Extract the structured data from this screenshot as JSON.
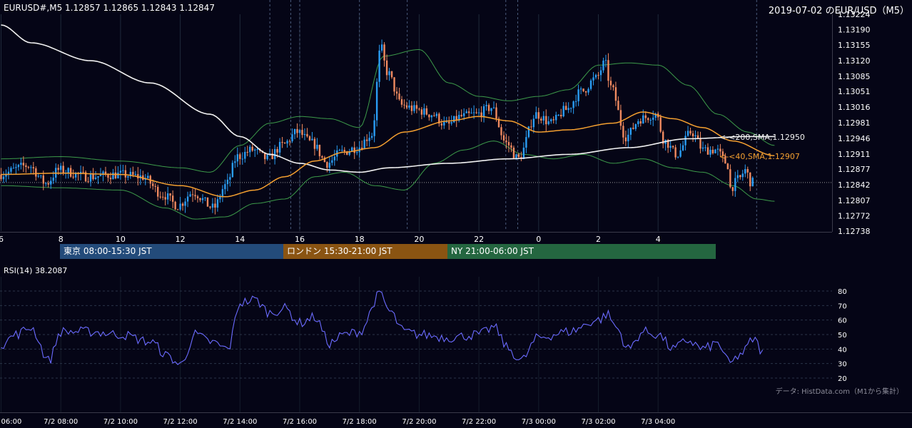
{
  "header": {
    "symbol_line": "EURUSD#,M5 1.12857 1.12865 1.12843 1.12847",
    "title": "2019-07-02 のEUR/USD（M5）"
  },
  "colors": {
    "background": "#050516",
    "bull": "#2a9df4",
    "bear": "#f08a60",
    "sma40": "#f5a030",
    "sma200": "#f2f2f2",
    "bollinger": "#3d9b4a",
    "rsi": "#6b6bff",
    "grid": "#1f2a3a"
  },
  "sessions": [
    {
      "label": "東京 08:00-15:30 JST",
      "color": "#234b7a"
    },
    {
      "label": "ロンドン 15:30-21:00 JST",
      "color": "#8a5412"
    },
    {
      "label": "NY 21:00-06:00 JST",
      "color": "#246640"
    }
  ],
  "indicators": {
    "sma200_label": "<-<200,SMA,1.12950",
    "sma40_label": "<-<40,SMA,1.12907",
    "rsi_label": "RSI(14) 38.2087"
  },
  "source_note": "データ: HistData.com（M1から集計）",
  "chart_data": {
    "type": "candlestick",
    "timeframe": "M5",
    "x_tick_labels": [
      "6",
      "8",
      "10",
      "12",
      "14",
      "16",
      "18",
      "20",
      "22",
      "0",
      "2",
      "4"
    ],
    "y_tick_labels": [
      "1.13224",
      "1.13190",
      "1.13155",
      "1.13120",
      "1.13085",
      "1.13051",
      "1.13016",
      "1.12981",
      "1.12946",
      "1.12911",
      "1.12877",
      "1.12842",
      "1.12807",
      "1.12772",
      "1.12738"
    ],
    "ylim": [
      1.12738,
      1.13224
    ],
    "current_price": 1.12847,
    "price_anchors": [
      [
        6,
        1.12865
      ],
      [
        7,
        1.12885
      ],
      [
        7.6,
        1.12845
      ],
      [
        8,
        1.12875
      ],
      [
        9,
        1.1286
      ],
      [
        10,
        1.12865
      ],
      [
        10.8,
        1.1286
      ],
      [
        11.5,
        1.1282
      ],
      [
        12,
        1.12795
      ],
      [
        12.5,
        1.12825
      ],
      [
        13.2,
        1.1279
      ],
      [
        13.6,
        1.1284
      ],
      [
        14,
        1.12905
      ],
      [
        14.5,
        1.1292
      ],
      [
        15,
        1.129
      ],
      [
        15.5,
        1.1293
      ],
      [
        16,
        1.1296
      ],
      [
        16.5,
        1.12935
      ],
      [
        17,
        1.1289
      ],
      [
        17.5,
        1.12915
      ],
      [
        18,
        1.12925
      ],
      [
        18.5,
        1.12955
      ],
      [
        18.8,
        1.1315
      ],
      [
        19,
        1.13095
      ],
      [
        19.5,
        1.1302
      ],
      [
        20,
        1.1301
      ],
      [
        20.5,
        1.13
      ],
      [
        21,
        1.12975
      ],
      [
        21.5,
        1.12995
      ],
      [
        22,
        1.13
      ],
      [
        22.5,
        1.13015
      ],
      [
        23,
        1.12935
      ],
      [
        23.4,
        1.129
      ],
      [
        24,
        1.13
      ],
      [
        24.5,
        1.1298
      ],
      [
        25,
        1.1301
      ],
      [
        25.5,
        1.1305
      ],
      [
        26,
        1.1308
      ],
      [
        26.3,
        1.13115
      ],
      [
        26.5,
        1.1306
      ],
      [
        27,
        1.1295
      ],
      [
        27.5,
        1.1299
      ],
      [
        28,
        1.13
      ],
      [
        28.3,
        1.1294
      ],
      [
        28.7,
        1.1291
      ],
      [
        29.2,
        1.1296
      ],
      [
        29.6,
        1.1292
      ],
      [
        30,
        1.1292
      ],
      [
        30.4,
        1.1289
      ],
      [
        30.5,
        1.12835
      ],
      [
        30.8,
        1.12855
      ],
      [
        31,
        1.12875
      ],
      [
        31.2,
        1.12847
      ]
    ],
    "sma200_anchors": [
      [
        6,
        1.132
      ],
      [
        7,
        1.1316
      ],
      [
        9,
        1.1312
      ],
      [
        11,
        1.1307
      ],
      [
        13,
        1.13
      ],
      [
        14,
        1.1295
      ],
      [
        15,
        1.1291
      ],
      [
        16,
        1.1289
      ],
      [
        17,
        1.12875
      ],
      [
        18,
        1.1287
      ],
      [
        19,
        1.1288
      ],
      [
        21,
        1.1289
      ],
      [
        23,
        1.129
      ],
      [
        25,
        1.1291
      ],
      [
        27,
        1.12925
      ],
      [
        29,
        1.12945
      ],
      [
        31,
        1.1295
      ],
      [
        31.9,
        1.1295
      ]
    ],
    "sma40_anchors": [
      [
        6,
        1.12865
      ],
      [
        8,
        1.12868
      ],
      [
        10,
        1.12865
      ],
      [
        12,
        1.1284
      ],
      [
        13.5,
        1.12815
      ],
      [
        14.5,
        1.1283
      ],
      [
        15.5,
        1.1286
      ],
      [
        16.5,
        1.12895
      ],
      [
        17.5,
        1.12915
      ],
      [
        18.5,
        1.12925
      ],
      [
        19.5,
        1.1296
      ],
      [
        21,
        1.12985
      ],
      [
        22,
        1.12995
      ],
      [
        23,
        1.12985
      ],
      [
        24,
        1.1296
      ],
      [
        25,
        1.12965
      ],
      [
        26.5,
        1.1298
      ],
      [
        27.5,
        1.13005
      ],
      [
        28.5,
        1.1299
      ],
      [
        29.5,
        1.1297
      ],
      [
        30.5,
        1.1294
      ],
      [
        31.9,
        1.12907
      ]
    ],
    "bb_upper_anchors": [
      [
        6,
        1.129
      ],
      [
        8,
        1.12905
      ],
      [
        10,
        1.12895
      ],
      [
        12,
        1.1288
      ],
      [
        13,
        1.1287
      ],
      [
        14,
        1.1293
      ],
      [
        15,
        1.1298
      ],
      [
        16,
        1.12995
      ],
      [
        17,
        1.1299
      ],
      [
        18,
        1.1297
      ],
      [
        18.8,
        1.1313
      ],
      [
        20,
        1.13145
      ],
      [
        21,
        1.1307
      ],
      [
        22,
        1.1304
      ],
      [
        23,
        1.1303
      ],
      [
        24,
        1.1304
      ],
      [
        25,
        1.13055
      ],
      [
        26,
        1.1311
      ],
      [
        27,
        1.13115
      ],
      [
        28,
        1.1311
      ],
      [
        29,
        1.13065
      ],
      [
        30,
        1.13
      ],
      [
        31,
        1.1296
      ],
      [
        31.9,
        1.1293
      ]
    ],
    "bb_lower_anchors": [
      [
        6,
        1.1284
      ],
      [
        8,
        1.12835
      ],
      [
        10,
        1.1283
      ],
      [
        11.5,
        1.1279
      ],
      [
        12.5,
        1.12765
      ],
      [
        13.5,
        1.1277
      ],
      [
        14.5,
        1.128
      ],
      [
        15.5,
        1.1281
      ],
      [
        16.5,
        1.1286
      ],
      [
        17.5,
        1.1287
      ],
      [
        18.5,
        1.1284
      ],
      [
        19.5,
        1.1283
      ],
      [
        20.5,
        1.1289
      ],
      [
        21.5,
        1.1292
      ],
      [
        22.5,
        1.1294
      ],
      [
        23.5,
        1.1291
      ],
      [
        24.5,
        1.129
      ],
      [
        25.5,
        1.1291
      ],
      [
        26.5,
        1.1289
      ],
      [
        27.5,
        1.129
      ],
      [
        28.5,
        1.1288
      ],
      [
        29.5,
        1.1287
      ],
      [
        30.5,
        1.1284
      ],
      [
        31.3,
        1.1281
      ],
      [
        31.9,
        1.12805
      ]
    ],
    "rsi": {
      "period": 14,
      "last": 38.2087,
      "ylim": [
        20,
        80
      ],
      "y_tick_labels": [
        "80",
        "70",
        "60",
        "50",
        "40",
        "30",
        "20"
      ],
      "anchors": [
        [
          6,
          43
        ],
        [
          6.5,
          50
        ],
        [
          7,
          55
        ],
        [
          7.6,
          32
        ],
        [
          8,
          52
        ],
        [
          9,
          52
        ],
        [
          10,
          50
        ],
        [
          11,
          45
        ],
        [
          11.6,
          35
        ],
        [
          12,
          29
        ],
        [
          12.5,
          50
        ],
        [
          13,
          45
        ],
        [
          13.6,
          40
        ],
        [
          14,
          72
        ],
        [
          14.5,
          74
        ],
        [
          15,
          65
        ],
        [
          15.5,
          68
        ],
        [
          16,
          58
        ],
        [
          16.5,
          62
        ],
        [
          17,
          44
        ],
        [
          17.5,
          50
        ],
        [
          18,
          52
        ],
        [
          18.7,
          78
        ],
        [
          19,
          66
        ],
        [
          19.5,
          52
        ],
        [
          20,
          50
        ],
        [
          21,
          48
        ],
        [
          22,
          50
        ],
        [
          22.5,
          55
        ],
        [
          23,
          40
        ],
        [
          23.4,
          32
        ],
        [
          24,
          48
        ],
        [
          25,
          52
        ],
        [
          26,
          60
        ],
        [
          26.3,
          64
        ],
        [
          26.6,
          55
        ],
        [
          27,
          40
        ],
        [
          27.5,
          52
        ],
        [
          28,
          50
        ],
        [
          28.5,
          40
        ],
        [
          29,
          46
        ],
        [
          29.5,
          40
        ],
        [
          30,
          44
        ],
        [
          30.4,
          30
        ],
        [
          30.8,
          37
        ],
        [
          31.2,
          47
        ],
        [
          31.5,
          38
        ]
      ]
    }
  }
}
